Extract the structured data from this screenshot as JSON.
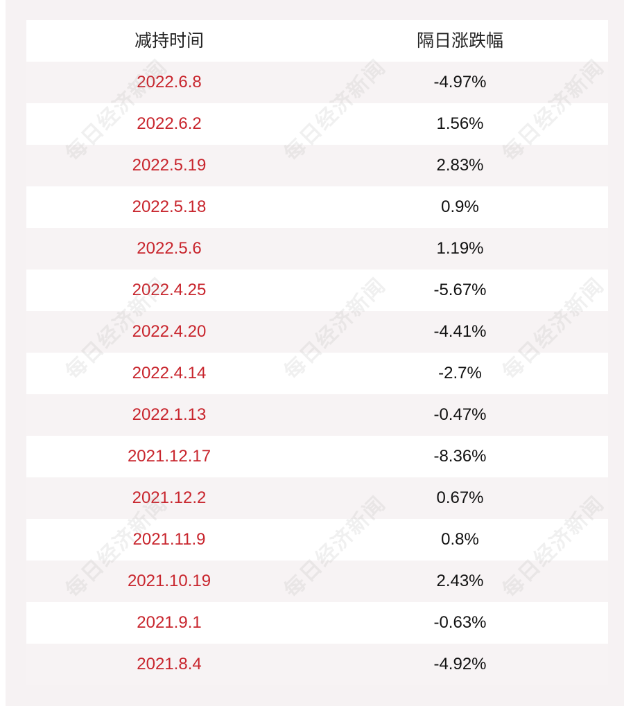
{
  "table": {
    "headers": [
      "减持时间",
      "隔日涨跌幅"
    ],
    "rows": [
      {
        "date": "2022.6.8",
        "change": "-4.97%"
      },
      {
        "date": "2022.6.2",
        "change": "1.56%"
      },
      {
        "date": "2022.5.19",
        "change": "2.83%"
      },
      {
        "date": "2022.5.18",
        "change": "0.9%"
      },
      {
        "date": "2022.5.6",
        "change": "1.19%"
      },
      {
        "date": "2022.4.25",
        "change": "-5.67%"
      },
      {
        "date": "2022.4.20",
        "change": "-4.41%"
      },
      {
        "date": "2022.4.14",
        "change": "-2.7%"
      },
      {
        "date": "2022.1.13",
        "change": "-0.47%"
      },
      {
        "date": "2021.12.17",
        "change": "-8.36%"
      },
      {
        "date": "2021.12.2",
        "change": "0.67%"
      },
      {
        "date": "2021.11.9",
        "change": "0.8%"
      },
      {
        "date": "2021.10.19",
        "change": "2.43%"
      },
      {
        "date": "2021.9.1",
        "change": "-0.63%"
      },
      {
        "date": "2021.8.4",
        "change": "-4.92%"
      }
    ]
  },
  "watermark": {
    "text": "每日经济新闻"
  },
  "colors": {
    "date_text": "#c8252d",
    "value_text": "#111111",
    "header_text": "#222222",
    "background": "#f6f2f3"
  }
}
